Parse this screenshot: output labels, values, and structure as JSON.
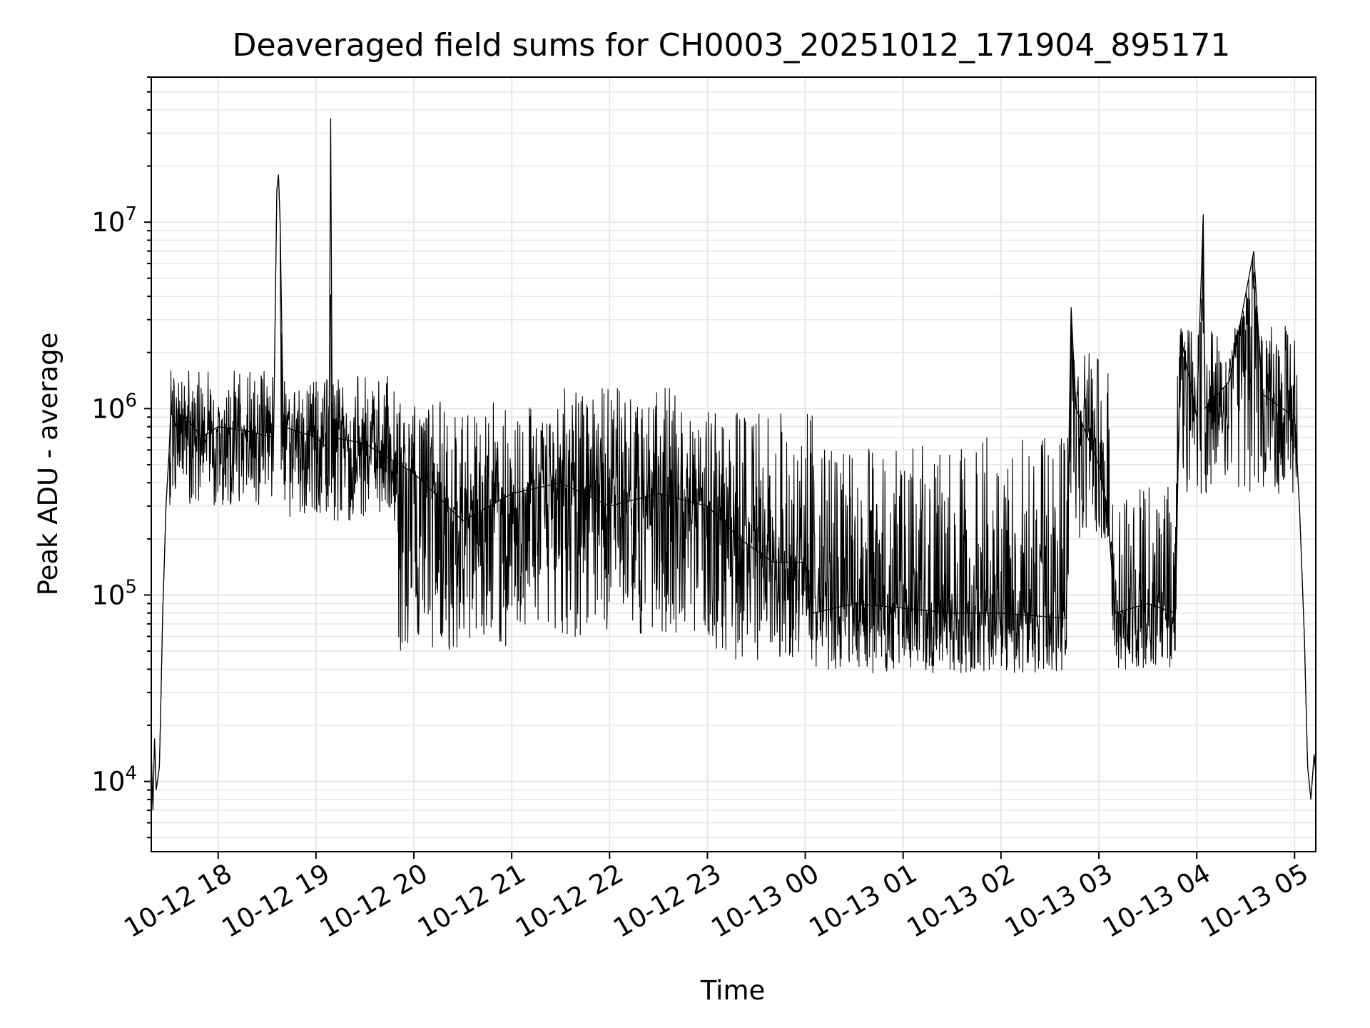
{
  "chart_data": {
    "type": "line",
    "title": "Deaveraged field sums for CH0003_20251012_171904_895171",
    "xlabel": "Time",
    "ylabel": "Peak ADU - average",
    "y_scale": "log",
    "ylim": [
      4200,
      60000000
    ],
    "xlim": [
      "2025-10-12 17:19",
      "2025-10-13 05:13"
    ],
    "grid": true,
    "line_color": "#000000",
    "grid_color": "#e6e6e6",
    "x_ticks": [
      {
        "t": "2025-10-12 18:00",
        "label": "10-12 18"
      },
      {
        "t": "2025-10-12 19:00",
        "label": "10-12 19"
      },
      {
        "t": "2025-10-12 20:00",
        "label": "10-12 20"
      },
      {
        "t": "2025-10-12 21:00",
        "label": "10-12 21"
      },
      {
        "t": "2025-10-12 22:00",
        "label": "10-12 22"
      },
      {
        "t": "2025-10-12 23:00",
        "label": "10-12 23"
      },
      {
        "t": "2025-10-13 00:00",
        "label": "10-13 00"
      },
      {
        "t": "2025-10-13 01:00",
        "label": "10-13 01"
      },
      {
        "t": "2025-10-13 02:00",
        "label": "10-13 02"
      },
      {
        "t": "2025-10-13 03:00",
        "label": "10-13 03"
      },
      {
        "t": "2025-10-13 04:00",
        "label": "10-13 04"
      },
      {
        "t": "2025-10-13 05:00",
        "label": "10-13 05"
      }
    ],
    "y_ticks": [
      {
        "value": 10000,
        "base": "10",
        "exp": "4"
      },
      {
        "value": 100000,
        "base": "10",
        "exp": "5"
      },
      {
        "value": 1000000,
        "base": "10",
        "exp": "6"
      },
      {
        "value": 10000000,
        "base": "10",
        "exp": "7"
      }
    ],
    "series": [
      {
        "points": [
          [
            "2025-10-12 17:19",
            15000
          ],
          [
            "2025-10-12 17:20",
            7000
          ],
          [
            "2025-10-12 17:21",
            17000
          ],
          [
            "2025-10-12 17:22",
            9000
          ],
          [
            "2025-10-12 17:24",
            12000
          ],
          [
            "2025-10-12 17:25",
            30000
          ],
          [
            "2025-10-12 17:26",
            80000
          ],
          [
            "2025-10-12 17:27",
            150000
          ],
          [
            "2025-10-12 17:28",
            300000
          ],
          [
            "2025-10-12 17:30",
            600000
          ],
          [
            "2025-10-12 17:31",
            1000000
          ],
          [
            "2025-10-12 17:34",
            800000
          ],
          [
            "2025-10-12 17:40",
            900000
          ],
          [
            "2025-10-12 17:50",
            700000
          ],
          [
            "2025-10-12 18:00",
            800000
          ],
          [
            "2025-10-12 18:20",
            750000
          ],
          [
            "2025-10-12 18:34",
            700000
          ],
          [
            "2025-10-12 18:36",
            15000000
          ],
          [
            "2025-10-12 18:37",
            18000000
          ],
          [
            "2025-10-12 18:38",
            10000000
          ],
          [
            "2025-10-12 18:40",
            800000
          ],
          [
            "2025-10-12 19:00",
            700000
          ],
          [
            "2025-10-12 19:08",
            600000
          ],
          [
            "2025-10-12 19:09",
            36000000
          ],
          [
            "2025-10-12 19:10",
            700000
          ],
          [
            "2025-10-12 19:30",
            650000
          ],
          [
            "2025-10-12 20:00",
            450000
          ],
          [
            "2025-10-12 20:30",
            250000
          ],
          [
            "2025-10-12 21:00",
            350000
          ],
          [
            "2025-10-12 21:30",
            400000
          ],
          [
            "2025-10-12 22:00",
            300000
          ],
          [
            "2025-10-12 22:30",
            350000
          ],
          [
            "2025-10-12 23:00",
            300000
          ],
          [
            "2025-10-12 23:20",
            200000
          ],
          [
            "2025-10-12 23:40",
            150000
          ],
          [
            "2025-10-13 00:00",
            150000
          ],
          [
            "2025-10-13 00:05",
            80000
          ],
          [
            "2025-10-13 00:30",
            90000
          ],
          [
            "2025-10-13 01:00",
            85000
          ],
          [
            "2025-10-13 01:30",
            80000
          ],
          [
            "2025-10-13 02:00",
            80000
          ],
          [
            "2025-10-13 02:40",
            75000
          ],
          [
            "2025-10-13 02:43",
            3500000
          ],
          [
            "2025-10-13 02:46",
            1000000
          ],
          [
            "2025-10-13 03:00",
            500000
          ],
          [
            "2025-10-13 03:05",
            300000
          ],
          [
            "2025-10-13 03:10",
            80000
          ],
          [
            "2025-10-13 03:30",
            90000
          ],
          [
            "2025-10-13 03:47",
            80000
          ],
          [
            "2025-10-13 03:50",
            2500000
          ],
          [
            "2025-10-13 04:00",
            900000
          ],
          [
            "2025-10-13 04:04",
            11000000
          ],
          [
            "2025-10-13 04:05",
            1000000
          ],
          [
            "2025-10-13 04:20",
            1400000
          ],
          [
            "2025-10-13 04:35",
            7000000
          ],
          [
            "2025-10-13 04:40",
            1200000
          ],
          [
            "2025-10-13 05:00",
            900000
          ],
          [
            "2025-10-13 05:03",
            300000
          ],
          [
            "2025-10-13 05:06",
            60000
          ],
          [
            "2025-10-13 05:08",
            12000
          ],
          [
            "2025-10-13 05:10",
            8000
          ],
          [
            "2025-10-13 05:12",
            14000
          ],
          [
            "2025-10-13 05:13",
            11000
          ]
        ],
        "noise": [
          {
            "from": "2025-10-12 17:30",
            "to": "2025-10-12 18:34",
            "lo": 300000,
            "hi": 1600000
          },
          {
            "from": "2025-10-12 18:38",
            "to": "2025-10-12 19:50",
            "lo": 250000,
            "hi": 1500000
          },
          {
            "from": "2025-10-12 19:50",
            "to": "2025-10-12 21:00",
            "lo": 50000,
            "hi": 1100000
          },
          {
            "from": "2025-10-12 21:00",
            "to": "2025-10-12 23:00",
            "lo": 60000,
            "hi": 1300000
          },
          {
            "from": "2025-10-12 23:00",
            "to": "2025-10-13 00:05",
            "lo": 45000,
            "hi": 1000000
          },
          {
            "from": "2025-10-13 00:05",
            "to": "2025-10-13 02:42",
            "lo": 38000,
            "hi": 700000
          },
          {
            "from": "2025-10-13 02:42",
            "to": "2025-10-13 03:08",
            "lo": 200000,
            "hi": 2000000
          },
          {
            "from": "2025-10-13 03:08",
            "to": "2025-10-13 03:48",
            "lo": 38000,
            "hi": 400000
          },
          {
            "from": "2025-10-13 03:48",
            "to": "2025-10-13 05:02",
            "lo": 350000,
            "hi": 2800000
          }
        ]
      }
    ]
  }
}
